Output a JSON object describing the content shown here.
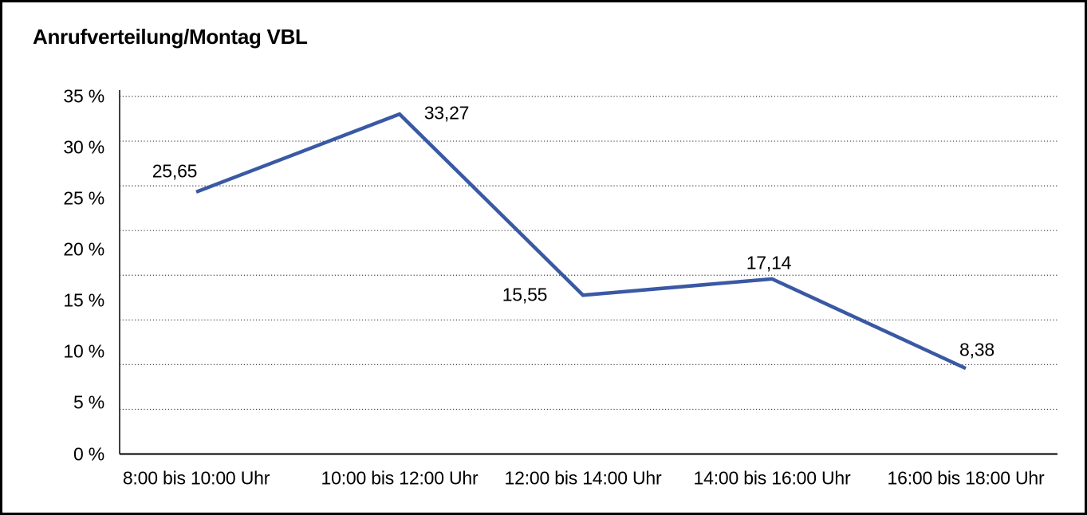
{
  "chart_data": {
    "type": "line",
    "title": "Anrufverteilung/Montag VBL",
    "categories": [
      "8:00 bis 10:00 Uhr",
      "10:00 bis 12:00 Uhr",
      "12:00 bis 14:00 Uhr",
      "14:00 bis 16:00 Uhr",
      "16:00 bis 18:00 Uhr"
    ],
    "values": [
      25.65,
      33.27,
      15.55,
      17.14,
      8.38
    ],
    "value_labels": [
      "25,65",
      "33,27",
      "15,55",
      "17,14",
      "8,38"
    ],
    "xlabel": "",
    "ylabel": "",
    "ylim": [
      0,
      35
    ],
    "y_tick_step": 5,
    "y_tick_labels": [
      "35 %",
      "30 %",
      "25 %",
      "20 %",
      "15 %",
      "10 %",
      "5 %",
      "0 %"
    ],
    "grid": "horizontal-dotted",
    "legend": false,
    "line_color": "#3a59a4",
    "grid_color": "#404040",
    "axis_color": "#000000",
    "text_color": "#000000",
    "background": "#ffffff"
  }
}
